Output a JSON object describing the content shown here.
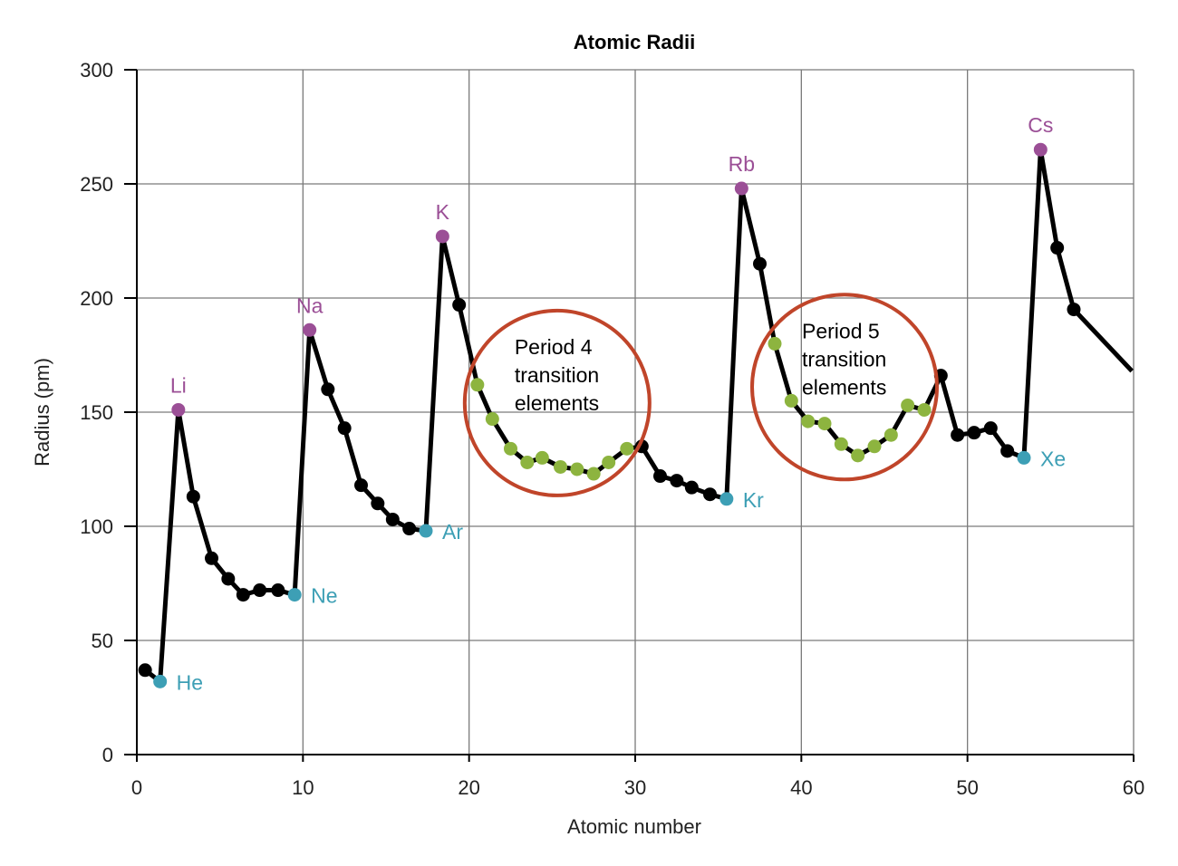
{
  "chart_data": {
    "type": "line",
    "title": "Atomic Radii",
    "xlabel": "Atomic number",
    "ylabel": "Radius (pm)",
    "xlim": [
      0,
      60
    ],
    "ylim": [
      0,
      300
    ],
    "xticks": [
      "0",
      "10",
      "20",
      "30",
      "40",
      "50",
      "60"
    ],
    "yticks": [
      "0",
      "50",
      "100",
      "150",
      "200",
      "250",
      "300"
    ],
    "grid": true,
    "colors": {
      "line": "#000000",
      "default": "#000000",
      "alkali": "#9b4f96",
      "noble": "#3d9fb5",
      "transition": "#8db43f",
      "circle": "#c0452a"
    },
    "points": [
      {
        "x": 0.5,
        "y": 37,
        "kind": "default"
      },
      {
        "x": 1.4,
        "y": 32,
        "kind": "noble",
        "label": "He"
      },
      {
        "x": 2.5,
        "y": 151,
        "kind": "alkali",
        "label": "Li"
      },
      {
        "x": 3.4,
        "y": 113,
        "kind": "default"
      },
      {
        "x": 4.5,
        "y": 86,
        "kind": "default"
      },
      {
        "x": 5.5,
        "y": 77,
        "kind": "default"
      },
      {
        "x": 6.4,
        "y": 70,
        "kind": "default"
      },
      {
        "x": 7.4,
        "y": 72,
        "kind": "default"
      },
      {
        "x": 8.5,
        "y": 72,
        "kind": "default"
      },
      {
        "x": 9.5,
        "y": 70,
        "kind": "noble",
        "label": "Ne"
      },
      {
        "x": 10.4,
        "y": 186,
        "kind": "alkali",
        "label": "Na"
      },
      {
        "x": 11.5,
        "y": 160,
        "kind": "default"
      },
      {
        "x": 12.5,
        "y": 143,
        "kind": "default"
      },
      {
        "x": 13.5,
        "y": 118,
        "kind": "default"
      },
      {
        "x": 14.5,
        "y": 110,
        "kind": "default"
      },
      {
        "x": 15.4,
        "y": 103,
        "kind": "default"
      },
      {
        "x": 16.4,
        "y": 99,
        "kind": "default"
      },
      {
        "x": 17.4,
        "y": 98,
        "kind": "noble",
        "label": "Ar"
      },
      {
        "x": 18.4,
        "y": 227,
        "kind": "alkali",
        "label": "K"
      },
      {
        "x": 19.4,
        "y": 197,
        "kind": "default"
      },
      {
        "x": 20.5,
        "y": 162,
        "kind": "transition"
      },
      {
        "x": 21.4,
        "y": 147,
        "kind": "transition"
      },
      {
        "x": 22.5,
        "y": 134,
        "kind": "transition"
      },
      {
        "x": 23.5,
        "y": 128,
        "kind": "transition"
      },
      {
        "x": 24.4,
        "y": 130,
        "kind": "transition"
      },
      {
        "x": 25.5,
        "y": 126,
        "kind": "transition"
      },
      {
        "x": 26.5,
        "y": 125,
        "kind": "transition"
      },
      {
        "x": 27.5,
        "y": 123,
        "kind": "transition"
      },
      {
        "x": 28.4,
        "y": 128,
        "kind": "transition"
      },
      {
        "x": 29.5,
        "y": 134,
        "kind": "transition"
      },
      {
        "x": 30.4,
        "y": 135,
        "kind": "default"
      },
      {
        "x": 31.5,
        "y": 122,
        "kind": "default"
      },
      {
        "x": 32.5,
        "y": 120,
        "kind": "default"
      },
      {
        "x": 33.4,
        "y": 117,
        "kind": "default"
      },
      {
        "x": 34.5,
        "y": 114,
        "kind": "default"
      },
      {
        "x": 35.5,
        "y": 112,
        "kind": "noble",
        "label": "Kr"
      },
      {
        "x": 36.4,
        "y": 248,
        "kind": "alkali",
        "label": "Rb"
      },
      {
        "x": 37.5,
        "y": 215,
        "kind": "default"
      },
      {
        "x": 38.4,
        "y": 180,
        "kind": "transition"
      },
      {
        "x": 39.4,
        "y": 155,
        "kind": "transition"
      },
      {
        "x": 40.4,
        "y": 146,
        "kind": "transition"
      },
      {
        "x": 41.4,
        "y": 145,
        "kind": "transition"
      },
      {
        "x": 42.4,
        "y": 136,
        "kind": "transition"
      },
      {
        "x": 43.4,
        "y": 131,
        "kind": "transition"
      },
      {
        "x": 44.4,
        "y": 135,
        "kind": "transition"
      },
      {
        "x": 45.4,
        "y": 140,
        "kind": "transition"
      },
      {
        "x": 46.4,
        "y": 153,
        "kind": "transition"
      },
      {
        "x": 47.4,
        "y": 151,
        "kind": "transition"
      },
      {
        "x": 48.4,
        "y": 166,
        "kind": "default"
      },
      {
        "x": 49.4,
        "y": 140,
        "kind": "default"
      },
      {
        "x": 50.4,
        "y": 141,
        "kind": "default"
      },
      {
        "x": 51.4,
        "y": 143,
        "kind": "default"
      },
      {
        "x": 52.4,
        "y": 133,
        "kind": "default"
      },
      {
        "x": 53.4,
        "y": 130,
        "kind": "noble",
        "label": "Xe"
      },
      {
        "x": 54.4,
        "y": 265,
        "kind": "alkali",
        "label": "Cs"
      },
      {
        "x": 55.4,
        "y": 222,
        "kind": "default"
      },
      {
        "x": 56.4,
        "y": 195,
        "kind": "default"
      }
    ],
    "line_end": {
      "x": 59.9,
      "y": 168
    },
    "annotations": [
      {
        "lines": [
          "Period 4",
          "transition",
          "elements"
        ],
        "x": 25.3,
        "y": 154
      },
      {
        "lines": [
          "Period 5",
          "transition",
          "elements"
        ],
        "x": 42.6,
        "y": 161
      }
    ]
  }
}
